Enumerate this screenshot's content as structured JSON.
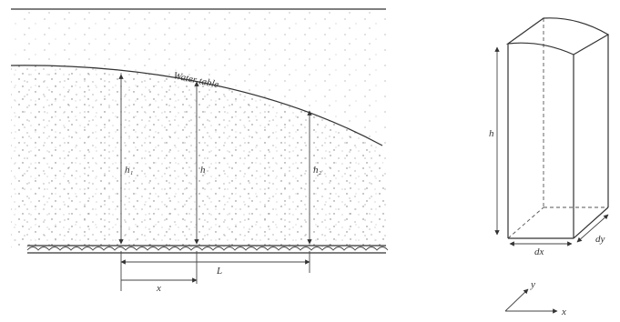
{
  "labels": {
    "water_table": "Water table",
    "h1": "h₁",
    "h": "h",
    "h2": "h₂",
    "L": "L",
    "x": "x",
    "box_h": "h",
    "dx": "dx",
    "dy": "dy",
    "axis_y": "y",
    "axis_x": "x"
  }
}
